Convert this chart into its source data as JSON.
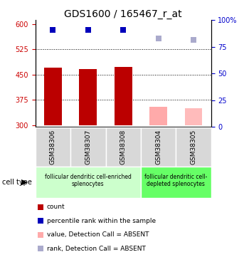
{
  "title": "GDS1600 / 165467_r_at",
  "samples": [
    "GSM38306",
    "GSM38307",
    "GSM38308",
    "GSM38304",
    "GSM38305"
  ],
  "bar_values": [
    470,
    466,
    472,
    355,
    350
  ],
  "bar_colors": [
    "#bb0000",
    "#bb0000",
    "#bb0000",
    "#ffaaaa",
    "#ffbbbb"
  ],
  "dot_y_left": [
    583,
    583,
    583,
    558,
    553
  ],
  "dot_colors": [
    "#0000bb",
    "#0000bb",
    "#0000bb",
    "#aaaacc",
    "#aaaacc"
  ],
  "ylim_left": [
    295,
    612
  ],
  "ylim_right": [
    0,
    100
  ],
  "yticks_left": [
    300,
    375,
    450,
    525,
    600
  ],
  "yticks_right": [
    0,
    25,
    50,
    75,
    100
  ],
  "hlines": [
    375,
    450,
    525
  ],
  "bar_bottom": 300,
  "group1_label": "follicular dendritic cell-enriched\nsplenocytes",
  "group2_label": "follicular dendritic cell-\ndepleted splenocytes",
  "group1_indices": [
    0,
    1,
    2
  ],
  "group2_indices": [
    3,
    4
  ],
  "cell_type_label": "cell type",
  "legend_items": [
    {
      "label": "count",
      "color": "#bb0000"
    },
    {
      "label": "percentile rank within the sample",
      "color": "#0000bb"
    },
    {
      "label": "value, Detection Call = ABSENT",
      "color": "#ffaaaa"
    },
    {
      "label": "rank, Detection Call = ABSENT",
      "color": "#aaaacc"
    }
  ],
  "bar_width": 0.5,
  "dot_size": 30,
  "title_fontsize": 10,
  "tick_fontsize": 7,
  "sample_label_fontsize": 6.5,
  "group_label_fontsize": 5.5,
  "legend_fontsize": 6.5,
  "group_bg_color_1": "#ccffcc",
  "group_bg_color_2": "#66ff66",
  "sample_bg_color": "#d8d8d8",
  "left_color": "#cc0000",
  "right_color": "#0000cc"
}
